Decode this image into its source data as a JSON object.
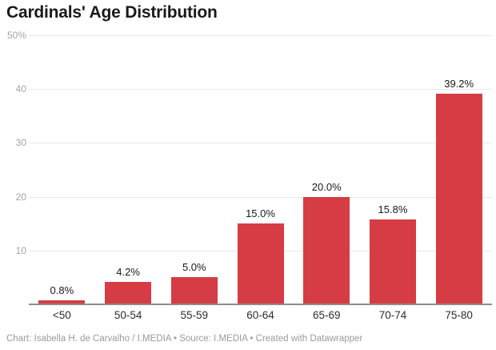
{
  "title": "Cardinals' Age Distribution",
  "footer": "Chart: Isabella H. de Carvalho / I.MEDIA • Source: I.MEDIA • Created with Datawrapper",
  "colors": {
    "background": "#ffffff",
    "bar": "#d63c43",
    "title": "#1a1a1a",
    "axis_label": "#a4a4a4",
    "x_label": "#2d2d2d",
    "value_label": "#191919",
    "gridline": "#e9e9e9",
    "baseline": "#8d8d8d",
    "footer": "#9b9b9b"
  },
  "chart_data": {
    "type": "bar",
    "title": "Cardinals' Age Distribution",
    "categories": [
      "<50",
      "50-54",
      "55-59",
      "60-64",
      "65-69",
      "70-74",
      "75-80"
    ],
    "values": [
      0.8,
      4.2,
      5.0,
      15.0,
      20.0,
      15.8,
      39.2
    ],
    "value_labels": [
      "0.8%",
      "4.2%",
      "5.0%",
      "15.0%",
      "20.0%",
      "15.8%",
      "39.2%"
    ],
    "yticks": [
      {
        "value": 50,
        "label": "50%"
      },
      {
        "value": 40,
        "label": "40"
      },
      {
        "value": 30,
        "label": "30"
      },
      {
        "value": 20,
        "label": "20"
      },
      {
        "value": 10,
        "label": "10"
      }
    ],
    "ylim": [
      0,
      50
    ],
    "xlabel": "",
    "ylabel": "",
    "grid": true,
    "legend": false
  }
}
